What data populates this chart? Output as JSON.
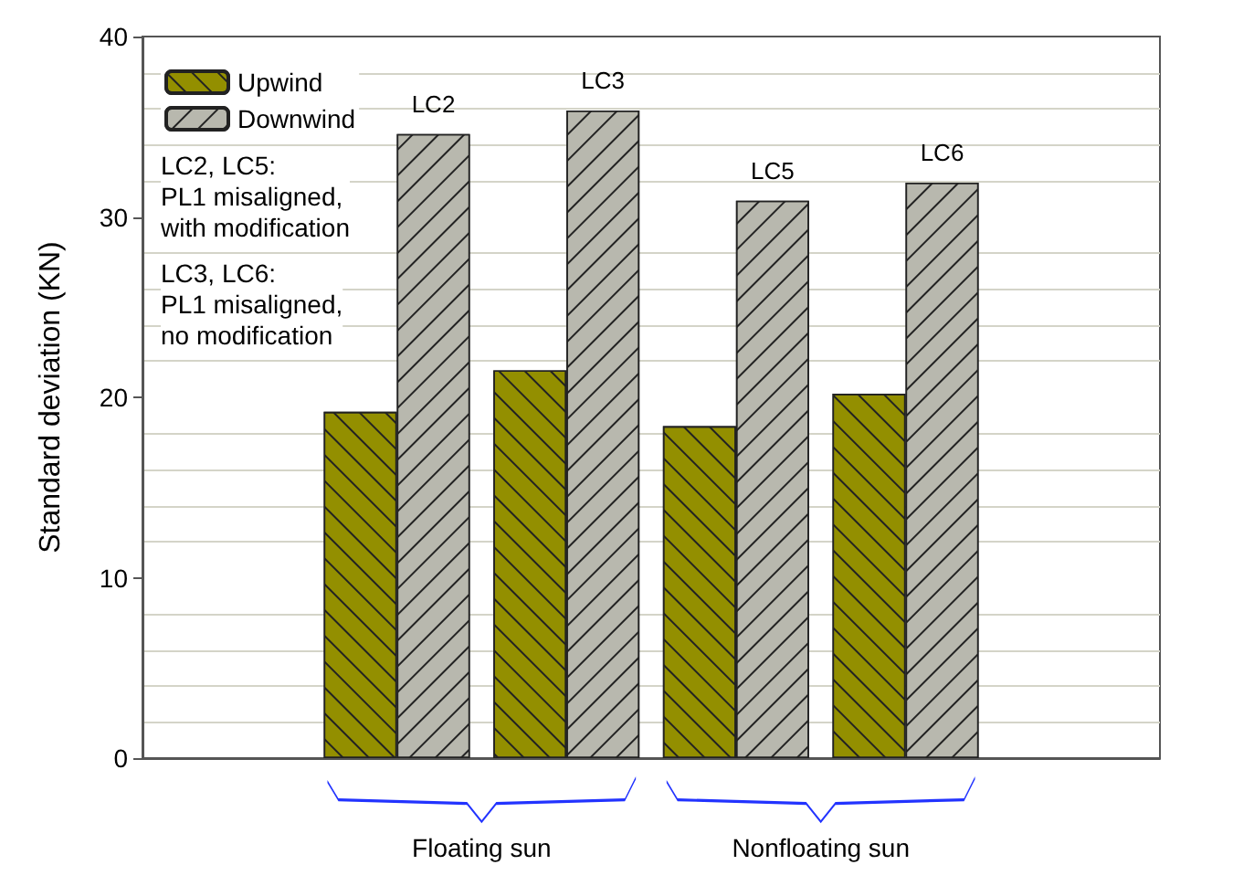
{
  "chart_data": {
    "type": "bar",
    "ylabel": "Standard deviation (KN)",
    "categories": [
      null,
      null,
      null,
      null
    ],
    "series": [
      {
        "name": "Upwind",
        "color": "#938f00",
        "values": [
          19.2,
          21.5,
          18.4,
          20.2
        ]
      },
      {
        "name": "Downwind",
        "color": "#b8b8ae",
        "values": [
          34.6,
          35.9,
          30.9,
          31.9
        ],
        "value_labels": [
          "LC2",
          "LC3",
          "LC5",
          "LC6"
        ]
      }
    ],
    "ylim": [
      0,
      40
    ],
    "yticks": [
      0,
      10,
      20,
      30,
      40
    ],
    "grid": "y",
    "legend": "top left",
    "annotations": [
      "LC2, LC5:\nPL1 misaligned,\nwith modification",
      "LC3, LC6:\nPL1 misaligned,\nno modification",
      "Floating sun",
      "Nonfloating sun"
    ]
  }
}
